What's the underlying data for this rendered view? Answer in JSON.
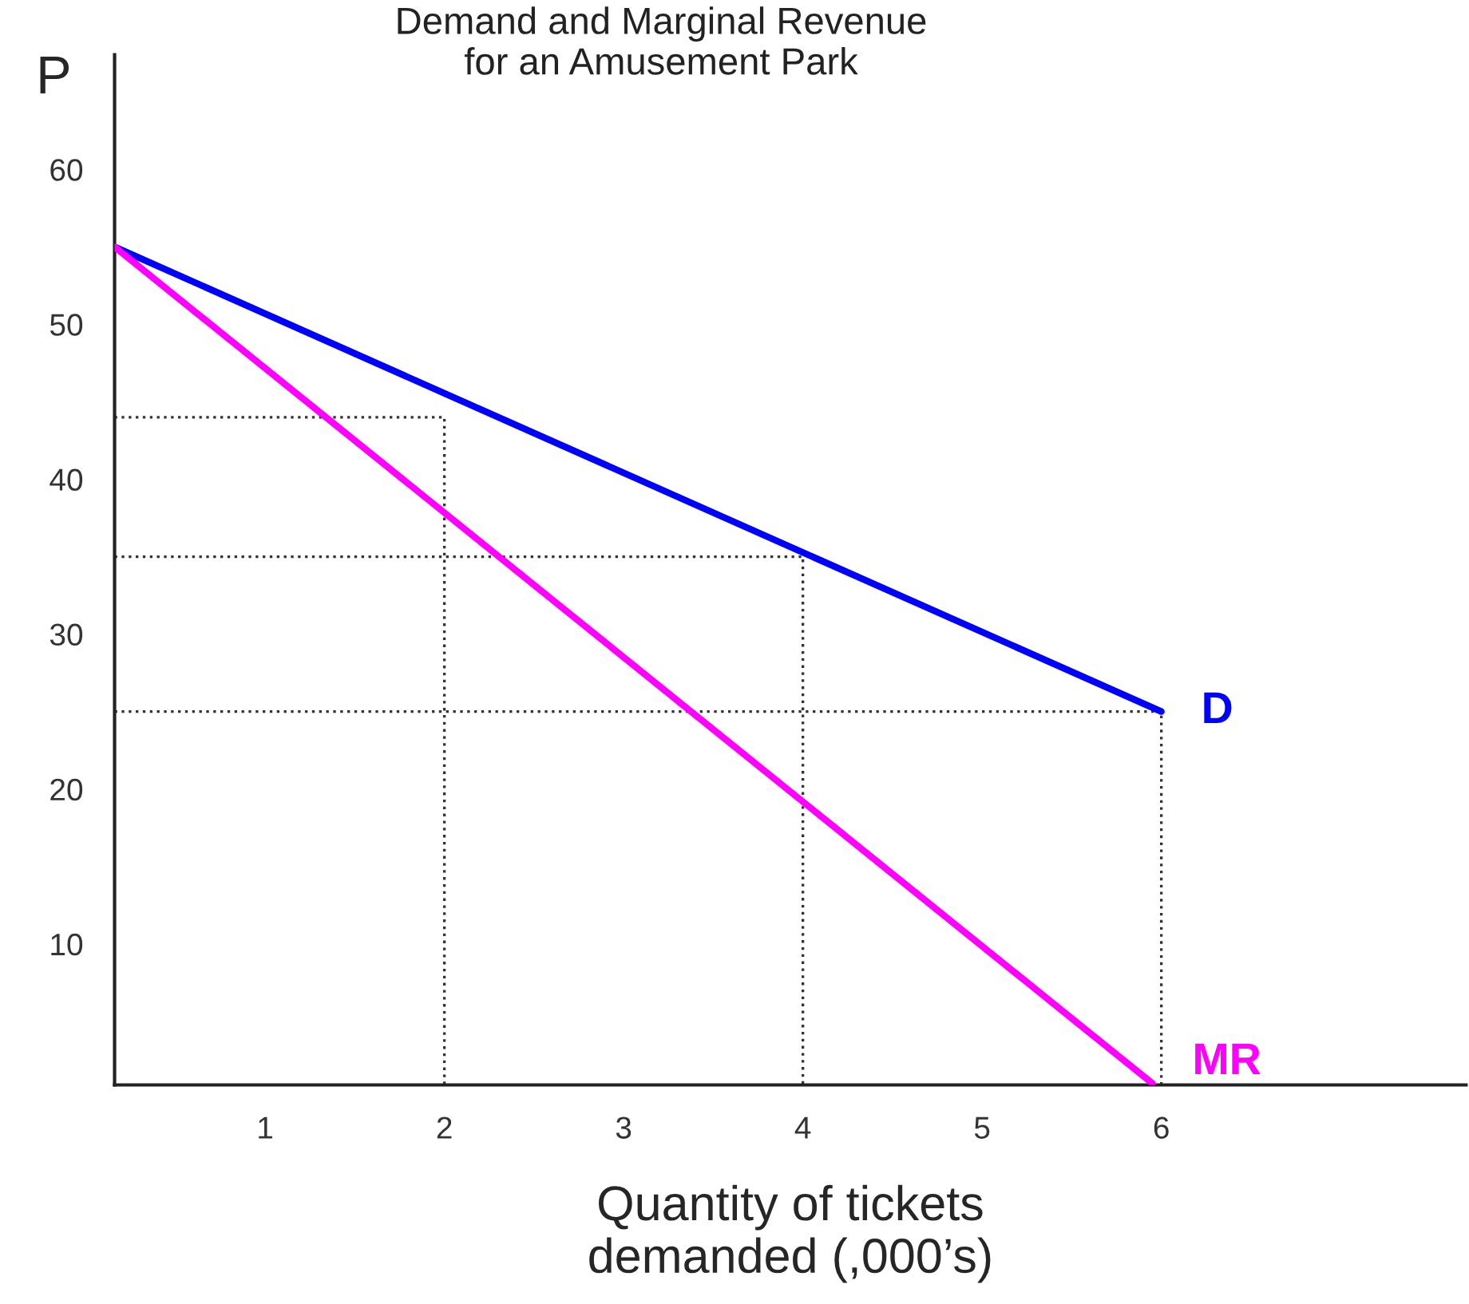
{
  "chart_data": {
    "type": "line",
    "title": "Demand and Marginal Revenue\nfor an Amusement Park",
    "xlabel": "Quantity of tickets\ndemanded (,000’s)",
    "ylabel": "P",
    "series": [
      {
        "name": "D",
        "color": "#0000ff",
        "x": [
          0.16,
          6
        ],
        "values": [
          55,
          25
        ]
      },
      {
        "name": "MR",
        "color": "#ff00ff",
        "x": [
          0.16,
          5.95
        ],
        "values": [
          55,
          1
        ]
      },
      {
        "color": "#333333",
        "line_style": "dotted",
        "x": [
          0.16,
          2,
          2
        ],
        "values": [
          44,
          44,
          0.9
        ]
      },
      {
        "color": "#333333",
        "line_style": "dotted",
        "x": [
          0.16,
          4,
          4
        ],
        "values": [
          35,
          35,
          0.9
        ]
      },
      {
        "color": "#333333",
        "line_style": "dotted",
        "x": [
          0.16,
          6,
          6
        ],
        "values": [
          25,
          25,
          0.9
        ]
      }
    ],
    "xlim": [
      0.16,
      7.7
    ],
    "ylim": [
      0.9,
      67.4
    ],
    "xticks": [
      1,
      2,
      3,
      4,
      5,
      6
    ],
    "yticks": [
      10,
      20,
      30,
      40,
      50,
      60
    ],
    "grid": false,
    "legend": false,
    "marker": "none",
    "line_style": "solid"
  }
}
